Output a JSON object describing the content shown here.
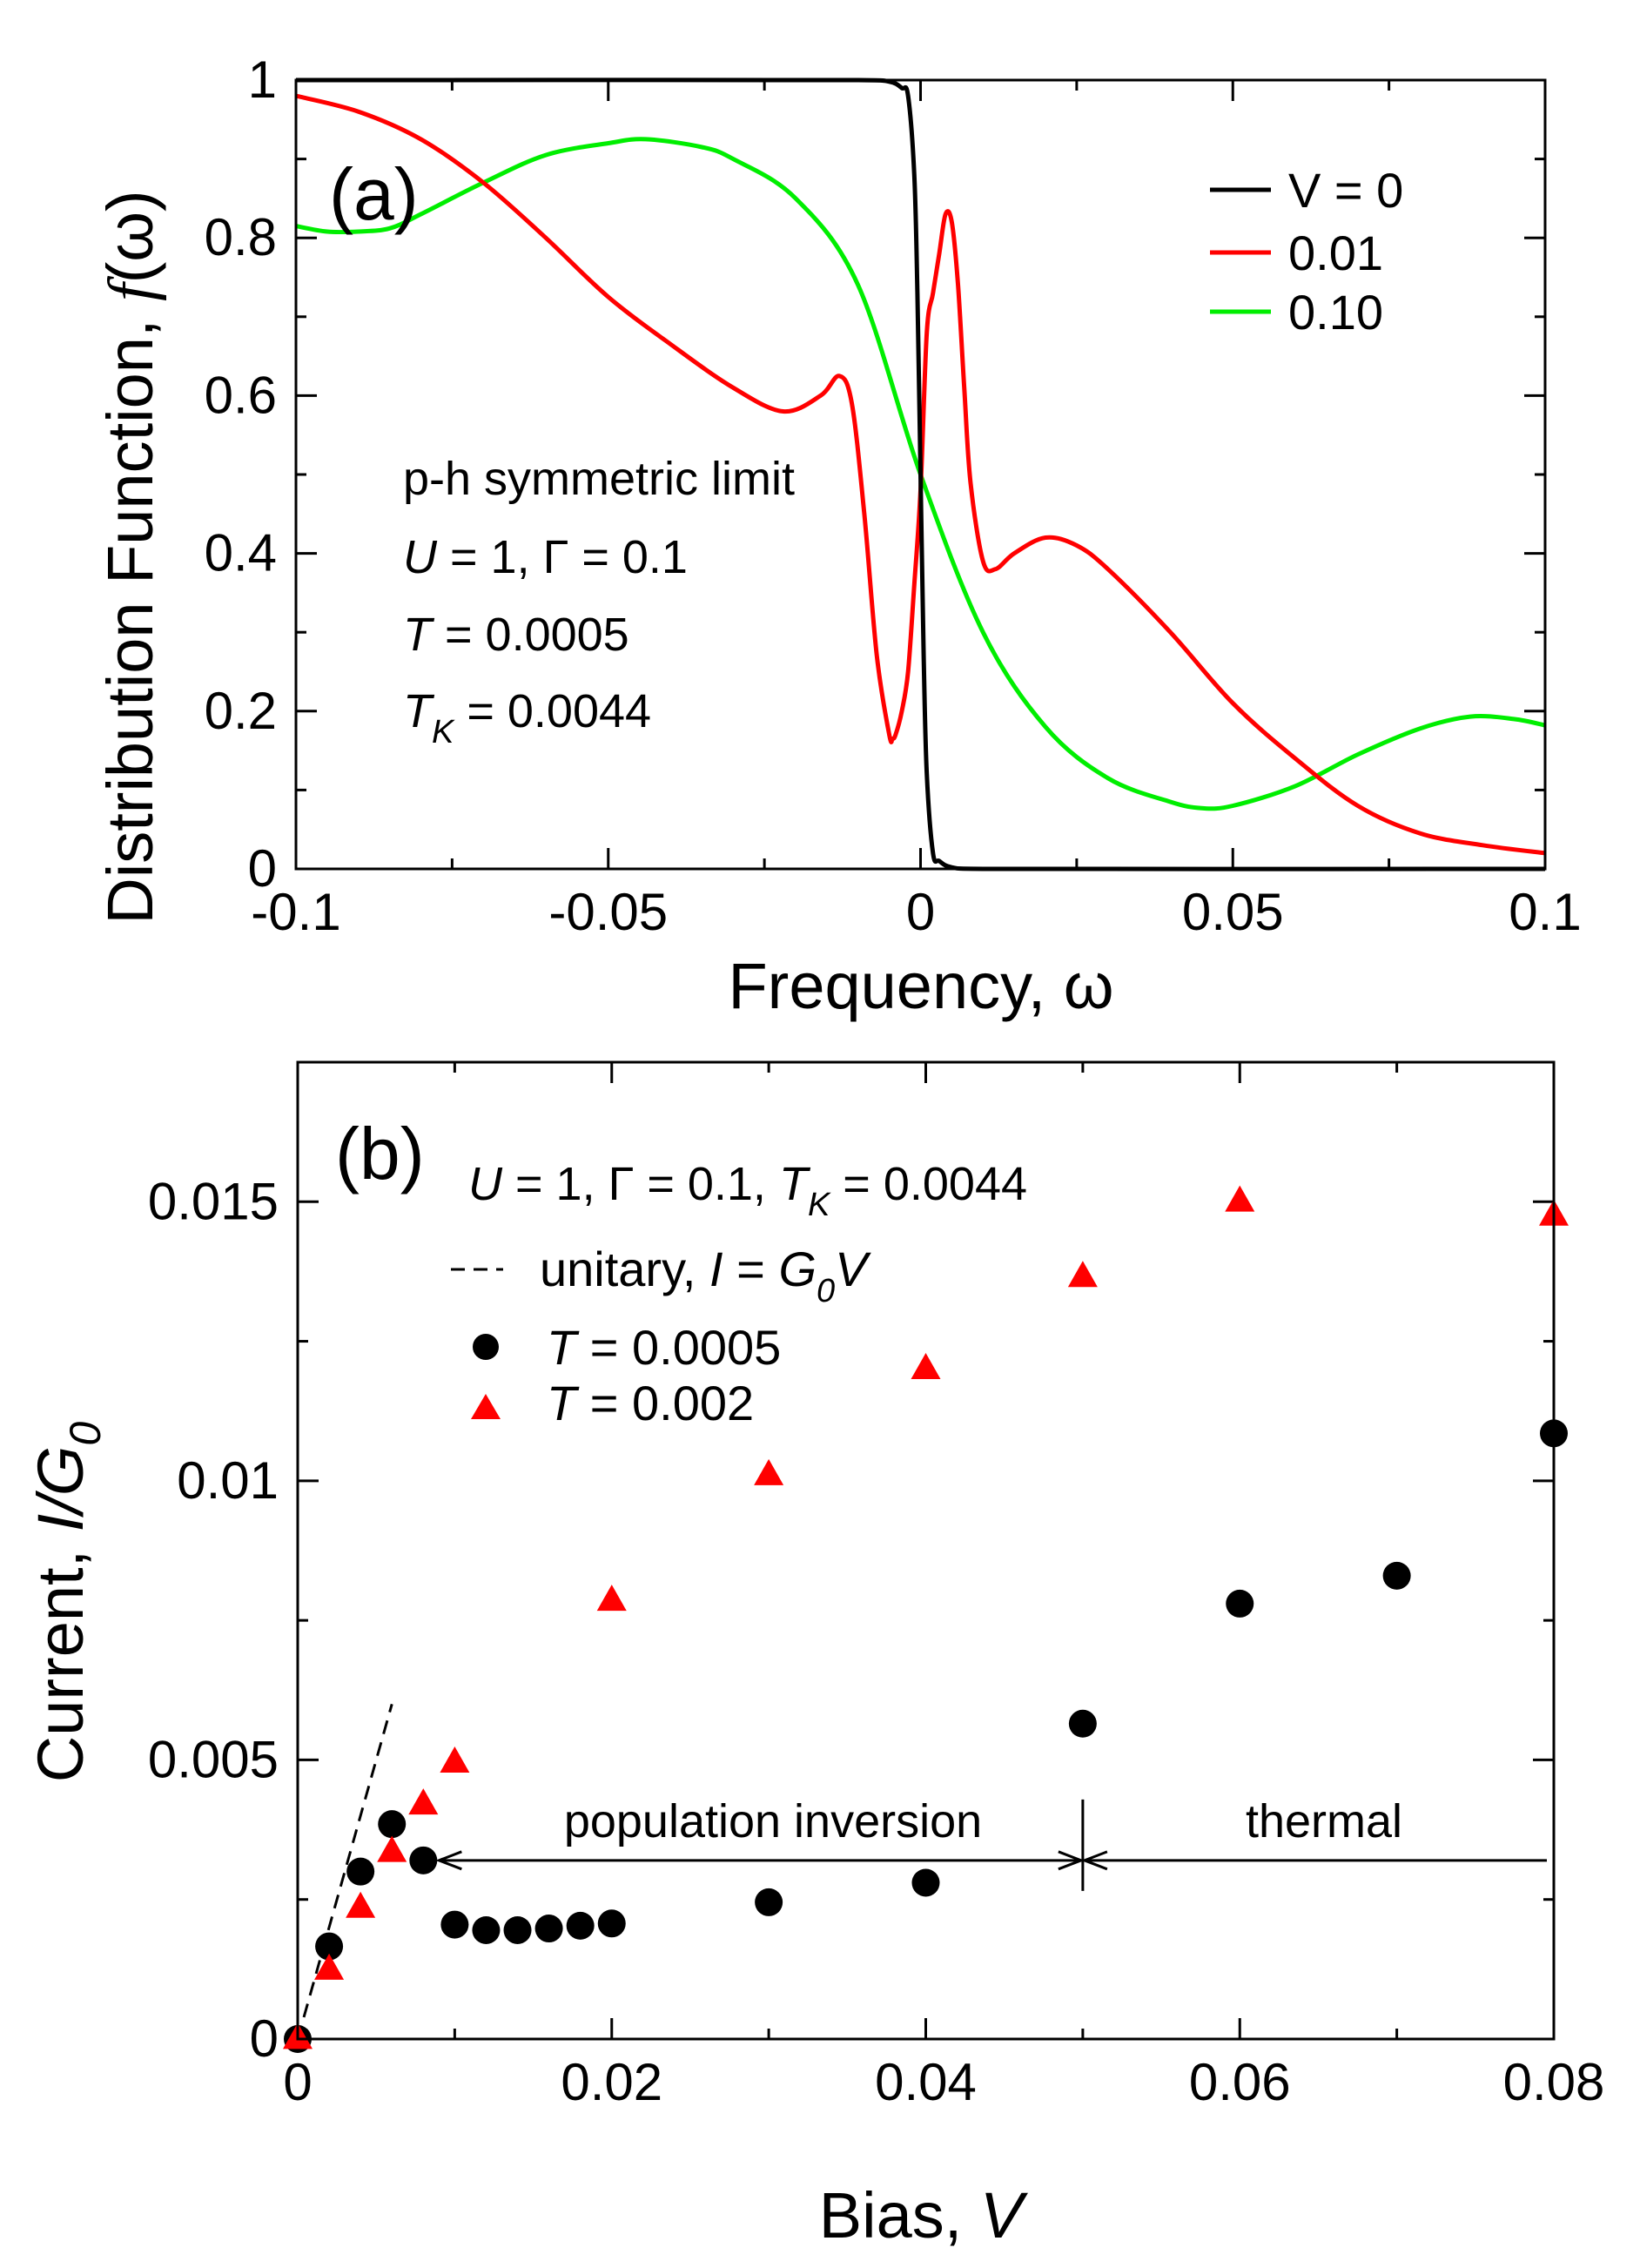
{
  "chart_data": [
    {
      "panel": "a",
      "type": "line",
      "panel_label": "(a)",
      "xlabel": "Frequency, ω",
      "ylabel_prefix": "Distribution Function, ",
      "ylabel_fn": "f",
      "ylabel_suffix": "(ω)",
      "xlim": [
        -0.1,
        0.1
      ],
      "ylim": [
        0,
        1
      ],
      "xticks": [
        -0.1,
        -0.05,
        0,
        0.05,
        0.1
      ],
      "xtick_labels": [
        "-0.1",
        "-0.05",
        "0",
        "0.05",
        "0.1"
      ],
      "yticks": [
        0,
        0.2,
        0.4,
        0.6,
        0.8,
        1
      ],
      "ytick_labels": [
        "0",
        "0.2",
        "0.4",
        "0.6",
        "0.8",
        "1"
      ],
      "legend_position": "top-right",
      "annotations": {
        "line1": "p-h symmetric limit",
        "line2": {
          "U": "U",
          "eq1": " = 1, Γ = 0.1"
        },
        "line3": {
          "T": "T",
          "eq": " = 0.0005"
        },
        "line4": {
          "T": "T",
          "sub": "K",
          "eq": " = 0.0044"
        }
      },
      "series": [
        {
          "name": "V = 0",
          "color": "#000000",
          "x": [
            -0.1,
            -0.01,
            -0.005,
            -0.003,
            -0.002,
            -0.001,
            -0.0005,
            0,
            0.0005,
            0.001,
            0.002,
            0.003,
            0.005,
            0.01,
            0.1
          ],
          "y": [
            1,
            1,
            0.998,
            0.99,
            0.98,
            0.88,
            0.73,
            0.5,
            0.27,
            0.12,
            0.02,
            0.01,
            0.002,
            0,
            0
          ]
        },
        {
          "name": "0.01",
          "color": "#ff0000",
          "x": [
            -0.1,
            -0.09,
            -0.08,
            -0.07,
            -0.06,
            -0.05,
            -0.04,
            -0.03,
            -0.022,
            -0.016,
            -0.013,
            -0.011,
            -0.009,
            -0.007,
            -0.005,
            -0.0045,
            -0.004,
            -0.003,
            -0.002,
            -0.001,
            0,
            0.001,
            0.002,
            0.003,
            0.004,
            0.005,
            0.006,
            0.007,
            0.008,
            0.01,
            0.012,
            0.015,
            0.02,
            0.025,
            0.03,
            0.04,
            0.05,
            0.06,
            0.07,
            0.08,
            0.09,
            0.1
          ],
          "y": [
            0.98,
            0.96,
            0.925,
            0.87,
            0.8,
            0.725,
            0.665,
            0.61,
            0.58,
            0.6,
            0.625,
            0.59,
            0.45,
            0.27,
            0.17,
            0.165,
            0.17,
            0.2,
            0.25,
            0.36,
            0.48,
            0.68,
            0.73,
            0.78,
            0.83,
            0.82,
            0.74,
            0.61,
            0.49,
            0.39,
            0.38,
            0.4,
            0.42,
            0.41,
            0.38,
            0.3,
            0.21,
            0.14,
            0.08,
            0.045,
            0.03,
            0.02
          ]
        },
        {
          "name": "0.10",
          "color": "#00ee00",
          "x": [
            -0.1,
            -0.095,
            -0.09,
            -0.085,
            -0.08,
            -0.07,
            -0.06,
            -0.05,
            -0.044,
            -0.035,
            -0.03,
            -0.02,
            -0.01,
            0,
            0.01,
            0.02,
            0.03,
            0.04,
            0.045,
            0.05,
            0.06,
            0.07,
            0.08,
            0.088,
            0.095,
            0.1
          ],
          "y": [
            0.815,
            0.808,
            0.808,
            0.812,
            0.83,
            0.87,
            0.905,
            0.92,
            0.925,
            0.915,
            0.9,
            0.85,
            0.74,
            0.5,
            0.3,
            0.18,
            0.115,
            0.085,
            0.077,
            0.08,
            0.105,
            0.145,
            0.178,
            0.193,
            0.19,
            0.182
          ]
        }
      ]
    },
    {
      "panel": "b",
      "type": "scatter",
      "panel_label": "(b)",
      "xlabel_prefix": "Bias, ",
      "xlabel_var": "V",
      "ylabel_prefix": "Current, ",
      "ylabel_var": "I/G",
      "ylabel_sub": "0",
      "xlim": [
        0,
        0.08
      ],
      "ylim": [
        0,
        0.0175
      ],
      "xticks": [
        0,
        0.02,
        0.04,
        0.06,
        0.08
      ],
      "xtick_labels": [
        "0",
        "0.02",
        "0.04",
        "0.06",
        "0.08"
      ],
      "yticks": [
        0,
        0.005,
        0.01,
        0.015
      ],
      "ytick_labels": [
        "0",
        "0.005",
        "0.01",
        "0.015"
      ],
      "params": {
        "U": "U",
        "p1": " = 1, Γ = 0.1, ",
        "T": "T",
        "sub": "K",
        "p2": " = 0.0044"
      },
      "legend_position": "top-left",
      "legend": {
        "unitary_prefix": "unitary, ",
        "unitary_I": "I",
        "unitary_eq": " = ",
        "unitary_G": "G",
        "unitary_sub": "0",
        "unitary_V": "V",
        "T_symbol": "T"
      },
      "regions": {
        "inversion": "population inversion",
        "thermal": "thermal",
        "boundary_V": 0.05,
        "inversion_start_V": 0.009,
        "thermal_end_V": 0.08,
        "arrow_level": 0.0032
      },
      "unitary_line": {
        "name": "unitary, I = G0V",
        "x": [
          0,
          0.006
        ],
        "y": [
          0,
          0.006
        ]
      },
      "series": [
        {
          "name": "T = 0.0005",
          "label_value": " = 0.0005",
          "marker": "circle",
          "color": "#000000",
          "x": [
            0,
            0.002,
            0.004,
            0.006,
            0.008,
            0.01,
            0.012,
            0.014,
            0.016,
            0.018,
            0.02,
            0.03,
            0.04,
            0.05,
            0.06,
            0.07,
            0.08
          ],
          "y": [
            0,
            0.00166,
            0.003,
            0.00385,
            0.0032,
            0.00205,
            0.00195,
            0.00195,
            0.00198,
            0.00203,
            0.00207,
            0.00245,
            0.0028,
            0.00565,
            0.0078,
            0.0083,
            0.01085
          ]
        },
        {
          "name": "T = 0.002",
          "label_value": " = 0.002",
          "marker": "triangle",
          "color": "#ff0000",
          "x": [
            0,
            0.002,
            0.004,
            0.006,
            0.008,
            0.01,
            0.02,
            0.03,
            0.04,
            0.05,
            0.06,
            0.08
          ],
          "y": [
            0,
            0.00124,
            0.00235,
            0.00335,
            0.0042,
            0.00495,
            0.00785,
            0.0101,
            0.012,
            0.01365,
            0.015,
            0.01475
          ]
        }
      ]
    }
  ]
}
